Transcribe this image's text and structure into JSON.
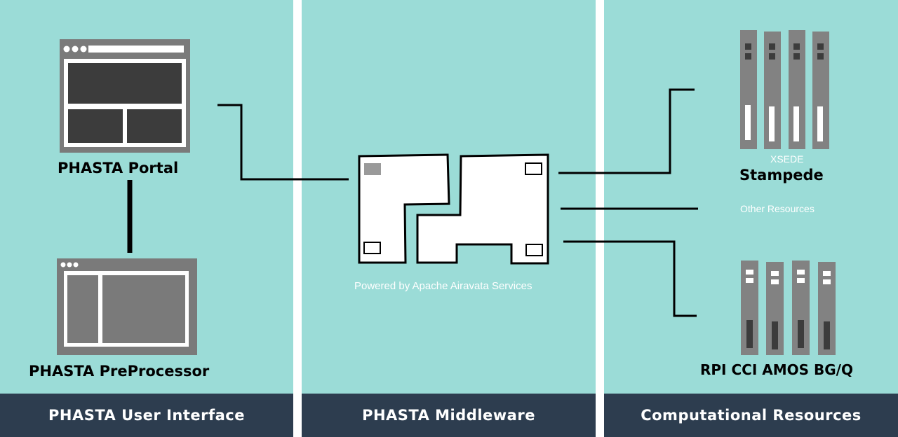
{
  "sections": [
    {
      "footer": "PHASTA User Interface"
    },
    {
      "footer": "PHASTA Middleware"
    },
    {
      "footer": "Computational Resources"
    }
  ],
  "nodes": {
    "portal": {
      "label": "PHASTA Portal",
      "icon": "browser-window-icon"
    },
    "preprocessor": {
      "label": "PHASTA PreProcessor",
      "icon": "browser-window-icon"
    },
    "middleware": {
      "caption": "Powered by Apache Airavata Services",
      "icon": "puzzle-blocks-icon"
    },
    "stampede": {
      "label": "Stampede",
      "sublabel": "XSEDE",
      "icon": "server-rack-icon"
    },
    "other": {
      "label": "Other Resources"
    },
    "amos": {
      "label": "RPI CCI AMOS BG/Q",
      "icon": "server-rack-icon"
    }
  },
  "colors": {
    "panel": "#9bdcd7",
    "footer": "#2d3d4f",
    "divider": "#ffffff",
    "window_frame": "#7a7a7a",
    "window_dark": "#3c3c3c",
    "server": "#828282"
  }
}
